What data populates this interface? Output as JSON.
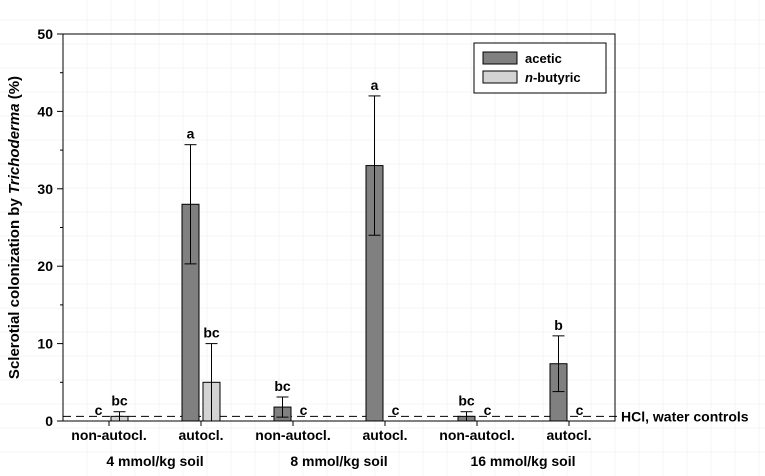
{
  "chart_data": {
    "type": "bar",
    "ylabel_prefix": "Sclerotial colonization by ",
    "ylabel_italic": "Trichoderma",
    "ylabel_suffix": " (%)",
    "ylim": [
      0,
      50
    ],
    "yticks": [
      0,
      10,
      20,
      30,
      40,
      50
    ],
    "categories": [
      "non-autocl.",
      "autocl.",
      "non-autocl.",
      "autocl.",
      "non-autocl.",
      "autocl."
    ],
    "groups": [
      "4 mmol/kg soil",
      "8 mmol/kg soil",
      "16 mmol/kg soil"
    ],
    "series": [
      {
        "name": "acetic",
        "color": "#808080",
        "values": [
          0,
          28,
          1.8,
          33,
          0.6,
          7.4
        ],
        "errors": [
          0,
          7.7,
          1.3,
          9,
          0.6,
          3.6
        ],
        "sig": [
          "c",
          "a",
          "bc",
          "a",
          "bc",
          "b"
        ]
      },
      {
        "name": "n-butyric",
        "name_prefix": "n",
        "name_suffix": "-butyric",
        "color": "#d3d3d3",
        "values": [
          0.6,
          5,
          0,
          0,
          0,
          0
        ],
        "errors": [
          0.6,
          5,
          0,
          0,
          0,
          0
        ],
        "sig": [
          "bc",
          "bc",
          "c",
          "c",
          "c",
          "c"
        ]
      }
    ],
    "reference_line": {
      "value": 0.6,
      "label": "HCl, water controls"
    },
    "legend_position": "top-right",
    "grid": true
  }
}
